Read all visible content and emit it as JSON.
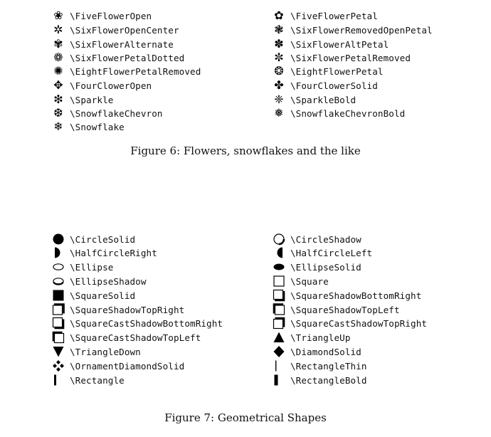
{
  "figure6": {
    "caption": "Figure 6: Flowers, snowflakes and the like",
    "left": [
      {
        "icon": "five-flower-open-icon",
        "glyph": "❀",
        "label": "\\FiveFlowerOpen"
      },
      {
        "icon": "six-flower-open-center-icon",
        "glyph": "✲",
        "label": "\\SixFlowerOpenCenter"
      },
      {
        "icon": "six-flower-alternate-icon",
        "glyph": "✾",
        "label": "\\SixFlowerAlternate"
      },
      {
        "icon": "six-flower-petal-dotted-icon",
        "glyph": "❁",
        "label": "\\SixFlowerPetalDotted"
      },
      {
        "icon": "eight-flower-petal-removed-icon",
        "glyph": "✺",
        "label": "\\EightFlowerPetalRemoved"
      },
      {
        "icon": "four-clover-open-icon",
        "glyph": "✥",
        "label": "\\FourClowerOpen"
      },
      {
        "icon": "sparkle-icon",
        "glyph": "❇",
        "label": "\\Sparkle"
      },
      {
        "icon": "snowflake-chevron-icon",
        "glyph": "❆",
        "label": "\\SnowflakeChevron"
      },
      {
        "icon": "snowflake-icon",
        "glyph": "❄",
        "label": "\\Snowflake"
      }
    ],
    "right": [
      {
        "icon": "five-flower-petal-icon",
        "glyph": "✿",
        "label": "\\FiveFlowerPetal"
      },
      {
        "icon": "six-flower-removed-open-petal-icon",
        "glyph": "❃",
        "label": "\\SixFlowerRemovedOpenPetal"
      },
      {
        "icon": "six-flower-alt-petal-icon",
        "glyph": "✽",
        "label": "\\SixFlowerAltPetal"
      },
      {
        "icon": "six-flower-petal-removed-icon",
        "glyph": "✼",
        "label": "\\SixFlowerPetalRemoved"
      },
      {
        "icon": "eight-flower-petal-icon",
        "glyph": "❂",
        "label": "\\EightFlowerPetal"
      },
      {
        "icon": "four-clover-solid-icon",
        "glyph": "✤",
        "label": "\\FourClowerSolid"
      },
      {
        "icon": "sparkle-bold-icon",
        "glyph": "❈",
        "label": "\\SparkleBold"
      },
      {
        "icon": "snowflake-chevron-bold-icon",
        "glyph": "❅",
        "label": "\\SnowflakeChevronBold"
      }
    ]
  },
  "figure7": {
    "caption": "Figure 7: Geometrical Shapes",
    "left": [
      {
        "icon": "circle-solid-icon",
        "label": "\\CircleSolid"
      },
      {
        "icon": "half-circle-right-icon",
        "label": "\\HalfCircleRight"
      },
      {
        "icon": "ellipse-icon",
        "label": "\\Ellipse"
      },
      {
        "icon": "ellipse-shadow-icon",
        "label": "\\EllipseShadow"
      },
      {
        "icon": "square-solid-icon",
        "label": "\\SquareSolid"
      },
      {
        "icon": "square-shadow-top-right-icon",
        "label": "\\SquareShadowTopRight"
      },
      {
        "icon": "square-cast-shadow-bottom-right-icon",
        "label": "\\SquareCastShadowBottomRight"
      },
      {
        "icon": "square-cast-shadow-top-left-icon",
        "label": "\\SquareCastShadowTopLeft"
      },
      {
        "icon": "triangle-down-icon",
        "label": "\\TriangleDown"
      },
      {
        "icon": "ornament-diamond-solid-icon",
        "label": "\\OrnamentDiamondSolid"
      },
      {
        "icon": "rectangle-icon",
        "label": "\\Rectangle"
      }
    ],
    "right": [
      {
        "icon": "circle-shadow-icon",
        "label": "\\CircleShadow"
      },
      {
        "icon": "half-circle-left-icon",
        "label": "\\HalfCircleLeft"
      },
      {
        "icon": "ellipse-solid-icon",
        "label": "\\EllipseSolid"
      },
      {
        "icon": "square-icon",
        "label": "\\Square"
      },
      {
        "icon": "square-shadow-bottom-right-icon",
        "label": "\\SquareShadowBottomRight"
      },
      {
        "icon": "square-shadow-top-left-icon",
        "label": "\\SquareShadowTopLeft"
      },
      {
        "icon": "square-cast-shadow-top-right-icon",
        "label": "\\SquareCastShadowTopRight"
      },
      {
        "icon": "triangle-up-icon",
        "label": "\\TriangleUp"
      },
      {
        "icon": "diamond-solid-icon",
        "label": "\\DiamondSolid"
      },
      {
        "icon": "rectangle-thin-icon",
        "label": "\\RectangleThin"
      },
      {
        "icon": "rectangle-bold-icon",
        "label": "\\RectangleBold"
      }
    ]
  }
}
